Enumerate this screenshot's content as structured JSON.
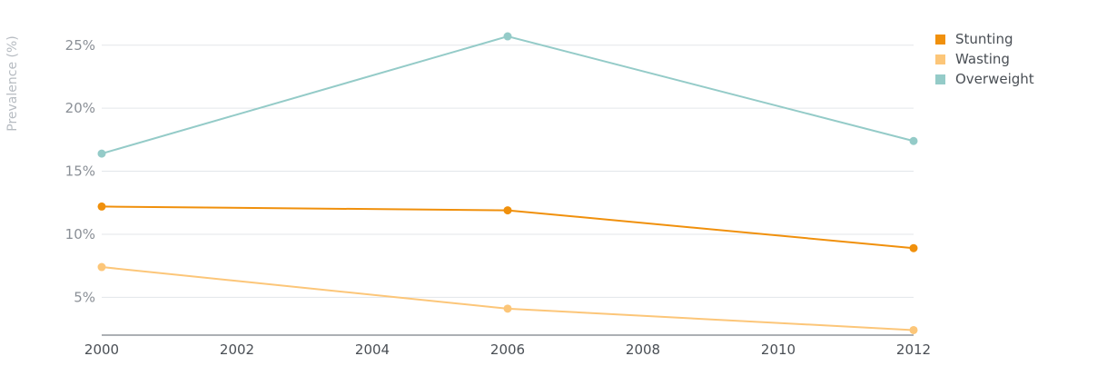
{
  "chart_data": {
    "type": "line",
    "ylabel": "Prevalence (%)",
    "x": [
      2000,
      2006,
      2012
    ],
    "xticks": [
      "2000",
      "2002",
      "2004",
      "2006",
      "2008",
      "2010",
      "2012"
    ],
    "xlim": [
      2000,
      2012
    ],
    "ylim": [
      2,
      27
    ],
    "yticks": [
      {
        "value": 5,
        "label": "5%"
      },
      {
        "value": 10,
        "label": "10%"
      },
      {
        "value": 15,
        "label": "15%"
      },
      {
        "value": 20,
        "label": "20%"
      },
      {
        "value": 25,
        "label": "25%"
      }
    ],
    "grid": true,
    "legend_position": "top-right",
    "series": [
      {
        "name": "Stunting",
        "color": "#f0900c",
        "values": [
          12.2,
          11.9,
          8.9
        ]
      },
      {
        "name": "Wasting",
        "color": "#fcc679",
        "values": [
          7.4,
          4.1,
          2.4
        ]
      },
      {
        "name": "Overweight",
        "color": "#94cbc8",
        "values": [
          16.4,
          25.7,
          17.4
        ]
      }
    ]
  }
}
